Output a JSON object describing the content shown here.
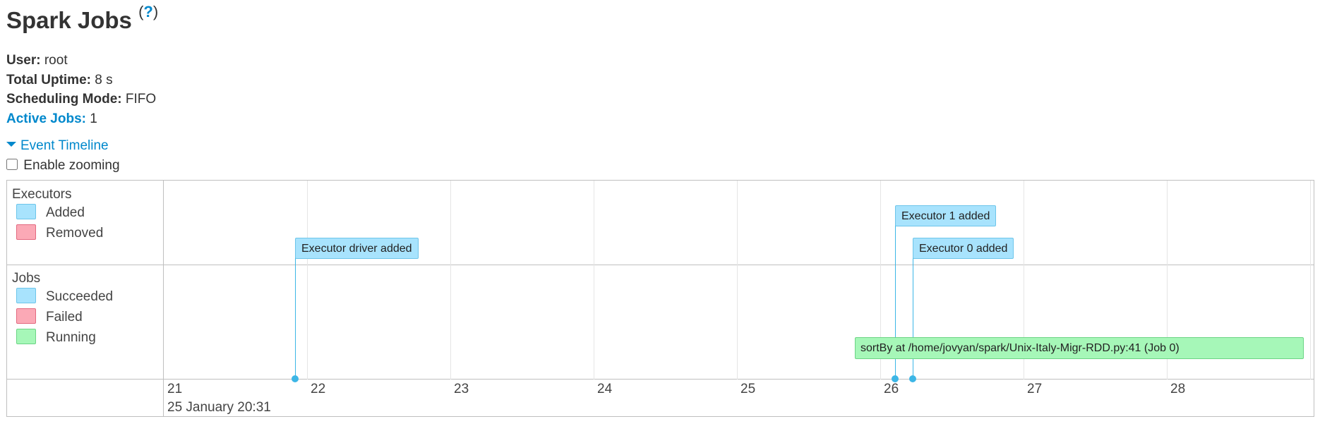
{
  "header": {
    "title": "Spark Jobs",
    "help_open": "(",
    "help_mark": "?",
    "help_close": ")"
  },
  "summary": {
    "user_label": "User:",
    "user_value": "root",
    "uptime_label": "Total Uptime:",
    "uptime_value": "8 s",
    "scheduling_label": "Scheduling Mode:",
    "scheduling_value": "FIFO",
    "active_jobs_label": "Active Jobs:",
    "active_jobs_value": "1"
  },
  "timeline": {
    "toggle_label": "Event Timeline",
    "zoom_label": "Enable zooming",
    "zoom_enabled": false,
    "groups": {
      "executors": {
        "label": "Executors",
        "legend": [
          {
            "label": "Added",
            "fill": "#a8e3fd",
            "stroke": "#6dc5ea"
          },
          {
            "label": "Removed",
            "fill": "#fba9b6",
            "stroke": "#e36a80"
          }
        ]
      },
      "jobs": {
        "label": "Jobs",
        "legend": [
          {
            "label": "Succeeded",
            "fill": "#a8e3fd",
            "stroke": "#6dc5ea"
          },
          {
            "label": "Failed",
            "fill": "#fba9b6",
            "stroke": "#e36a80"
          },
          {
            "label": "Running",
            "fill": "#a6f7b8",
            "stroke": "#6cd485"
          }
        ]
      }
    },
    "axis": {
      "ticks": [
        "21",
        "22",
        "23",
        "24",
        "25",
        "26",
        "27",
        "28"
      ],
      "date_label": "25 January 20:31"
    },
    "executor_events": [
      {
        "label": "Executor driver added"
      },
      {
        "label": "Executor 1 added"
      },
      {
        "label": "Executor 0 added"
      }
    ],
    "job_events": [
      {
        "label": "sortBy at /home/jovyan/spark/Unix-Italy-Migr-RDD.py:41 (Job 0)",
        "status": "Running"
      }
    ]
  }
}
